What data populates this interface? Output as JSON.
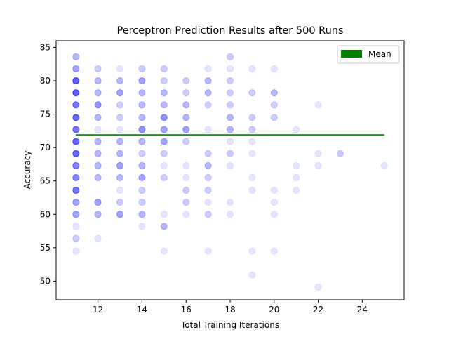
{
  "chart_data": {
    "type": "scatter",
    "title": "Perceptron Prediction Results after 500 Runs",
    "xlabel": "Total Training Iterations",
    "ylabel": "Accuracy",
    "xlim": [
      10.1,
      25.9
    ],
    "ylim": [
      47.2,
      86.0
    ],
    "xticks": [
      12,
      14,
      16,
      18,
      20,
      22,
      24
    ],
    "yticks": [
      50,
      55,
      60,
      65,
      70,
      75,
      80,
      85
    ],
    "grid": false,
    "legend_position": "top-right",
    "series": [
      {
        "type": "scatter",
        "color": "#0000ff",
        "points": [
          {
            "x": 11,
            "y": 83.6,
            "n": 3
          },
          {
            "x": 11,
            "y": 81.8,
            "n": 4
          },
          {
            "x": 11,
            "y": 80.0,
            "n": 9
          },
          {
            "x": 11,
            "y": 78.2,
            "n": 9
          },
          {
            "x": 11,
            "y": 76.4,
            "n": 7
          },
          {
            "x": 11,
            "y": 74.5,
            "n": 8
          },
          {
            "x": 11,
            "y": 72.7,
            "n": 7
          },
          {
            "x": 11,
            "y": 70.9,
            "n": 8
          },
          {
            "x": 11,
            "y": 69.1,
            "n": 8
          },
          {
            "x": 11,
            "y": 67.3,
            "n": 6
          },
          {
            "x": 11,
            "y": 65.5,
            "n": 6
          },
          {
            "x": 11,
            "y": 63.6,
            "n": 7
          },
          {
            "x": 11,
            "y": 61.8,
            "n": 4
          },
          {
            "x": 11,
            "y": 60.0,
            "n": 4
          },
          {
            "x": 11,
            "y": 58.2,
            "n": 1
          },
          {
            "x": 11,
            "y": 56.4,
            "n": 2
          },
          {
            "x": 11,
            "y": 54.5,
            "n": 1
          },
          {
            "x": 12,
            "y": 81.8,
            "n": 2
          },
          {
            "x": 12,
            "y": 80.0,
            "n": 3
          },
          {
            "x": 12,
            "y": 78.2,
            "n": 3
          },
          {
            "x": 12,
            "y": 76.4,
            "n": 5
          },
          {
            "x": 12,
            "y": 74.5,
            "n": 3
          },
          {
            "x": 12,
            "y": 72.7,
            "n": 1
          },
          {
            "x": 12,
            "y": 70.9,
            "n": 3
          },
          {
            "x": 12,
            "y": 69.1,
            "n": 3
          },
          {
            "x": 12,
            "y": 67.3,
            "n": 3
          },
          {
            "x": 12,
            "y": 65.5,
            "n": 3
          },
          {
            "x": 12,
            "y": 61.8,
            "n": 4
          },
          {
            "x": 12,
            "y": 60.0,
            "n": 3
          },
          {
            "x": 12,
            "y": 56.4,
            "n": 1
          },
          {
            "x": 13,
            "y": 81.8,
            "n": 1
          },
          {
            "x": 13,
            "y": 80.0,
            "n": 3
          },
          {
            "x": 13,
            "y": 78.2,
            "n": 4
          },
          {
            "x": 13,
            "y": 76.4,
            "n": 2
          },
          {
            "x": 13,
            "y": 74.5,
            "n": 2
          },
          {
            "x": 13,
            "y": 72.7,
            "n": 1
          },
          {
            "x": 13,
            "y": 70.9,
            "n": 3
          },
          {
            "x": 13,
            "y": 69.1,
            "n": 3
          },
          {
            "x": 13,
            "y": 67.3,
            "n": 4
          },
          {
            "x": 13,
            "y": 65.5,
            "n": 3
          },
          {
            "x": 13,
            "y": 63.6,
            "n": 1
          },
          {
            "x": 13,
            "y": 61.8,
            "n": 2
          },
          {
            "x": 13,
            "y": 60.0,
            "n": 4
          },
          {
            "x": 14,
            "y": 81.8,
            "n": 2
          },
          {
            "x": 14,
            "y": 80.0,
            "n": 4
          },
          {
            "x": 14,
            "y": 78.2,
            "n": 3
          },
          {
            "x": 14,
            "y": 76.4,
            "n": 3
          },
          {
            "x": 14,
            "y": 74.5,
            "n": 3
          },
          {
            "x": 14,
            "y": 72.7,
            "n": 5
          },
          {
            "x": 14,
            "y": 70.9,
            "n": 3
          },
          {
            "x": 14,
            "y": 69.1,
            "n": 2
          },
          {
            "x": 14,
            "y": 67.3,
            "n": 3
          },
          {
            "x": 14,
            "y": 65.5,
            "n": 4
          },
          {
            "x": 14,
            "y": 63.6,
            "n": 2
          },
          {
            "x": 14,
            "y": 61.8,
            "n": 2
          },
          {
            "x": 14,
            "y": 60.0,
            "n": 3
          },
          {
            "x": 14,
            "y": 58.2,
            "n": 1
          },
          {
            "x": 15,
            "y": 81.8,
            "n": 2
          },
          {
            "x": 15,
            "y": 80.0,
            "n": 2
          },
          {
            "x": 15,
            "y": 78.2,
            "n": 3
          },
          {
            "x": 15,
            "y": 76.4,
            "n": 3
          },
          {
            "x": 15,
            "y": 74.5,
            "n": 5
          },
          {
            "x": 15,
            "y": 72.7,
            "n": 4
          },
          {
            "x": 15,
            "y": 70.9,
            "n": 4
          },
          {
            "x": 15,
            "y": 69.1,
            "n": 2
          },
          {
            "x": 15,
            "y": 67.3,
            "n": 1
          },
          {
            "x": 15,
            "y": 65.5,
            "n": 2
          },
          {
            "x": 15,
            "y": 60.0,
            "n": 1
          },
          {
            "x": 15,
            "y": 58.2,
            "n": 3
          },
          {
            "x": 15,
            "y": 54.5,
            "n": 1
          },
          {
            "x": 16,
            "y": 80.0,
            "n": 2
          },
          {
            "x": 16,
            "y": 78.2,
            "n": 2
          },
          {
            "x": 16,
            "y": 76.4,
            "n": 3
          },
          {
            "x": 16,
            "y": 74.5,
            "n": 3
          },
          {
            "x": 16,
            "y": 72.7,
            "n": 4
          },
          {
            "x": 16,
            "y": 70.9,
            "n": 2
          },
          {
            "x": 16,
            "y": 67.3,
            "n": 1
          },
          {
            "x": 16,
            "y": 65.5,
            "n": 1
          },
          {
            "x": 16,
            "y": 63.6,
            "n": 2
          },
          {
            "x": 16,
            "y": 61.8,
            "n": 2
          },
          {
            "x": 16,
            "y": 60.0,
            "n": 1
          },
          {
            "x": 17,
            "y": 81.8,
            "n": 1
          },
          {
            "x": 17,
            "y": 80.0,
            "n": 3
          },
          {
            "x": 17,
            "y": 78.2,
            "n": 3
          },
          {
            "x": 17,
            "y": 76.4,
            "n": 2
          },
          {
            "x": 17,
            "y": 72.7,
            "n": 1
          },
          {
            "x": 17,
            "y": 69.1,
            "n": 2
          },
          {
            "x": 17,
            "y": 67.3,
            "n": 3
          },
          {
            "x": 17,
            "y": 65.5,
            "n": 2
          },
          {
            "x": 17,
            "y": 63.6,
            "n": 2
          },
          {
            "x": 17,
            "y": 61.8,
            "n": 1
          },
          {
            "x": 17,
            "y": 60.0,
            "n": 2
          },
          {
            "x": 17,
            "y": 54.5,
            "n": 1
          },
          {
            "x": 18,
            "y": 83.6,
            "n": 2
          },
          {
            "x": 18,
            "y": 81.8,
            "n": 1
          },
          {
            "x": 18,
            "y": 80.0,
            "n": 2
          },
          {
            "x": 18,
            "y": 78.2,
            "n": 2
          },
          {
            "x": 18,
            "y": 76.4,
            "n": 2
          },
          {
            "x": 18,
            "y": 74.5,
            "n": 3
          },
          {
            "x": 18,
            "y": 72.7,
            "n": 3
          },
          {
            "x": 18,
            "y": 70.9,
            "n": 1
          },
          {
            "x": 18,
            "y": 69.1,
            "n": 2
          },
          {
            "x": 18,
            "y": 67.3,
            "n": 1
          },
          {
            "x": 18,
            "y": 61.8,
            "n": 1
          },
          {
            "x": 18,
            "y": 60.0,
            "n": 1
          },
          {
            "x": 19,
            "y": 81.8,
            "n": 1
          },
          {
            "x": 19,
            "y": 78.2,
            "n": 2
          },
          {
            "x": 19,
            "y": 74.5,
            "n": 2
          },
          {
            "x": 19,
            "y": 72.7,
            "n": 2
          },
          {
            "x": 19,
            "y": 70.9,
            "n": 1
          },
          {
            "x": 19,
            "y": 69.1,
            "n": 1
          },
          {
            "x": 19,
            "y": 65.5,
            "n": 1
          },
          {
            "x": 19,
            "y": 63.6,
            "n": 1
          },
          {
            "x": 19,
            "y": 54.5,
            "n": 1
          },
          {
            "x": 19,
            "y": 50.9,
            "n": 1
          },
          {
            "x": 20,
            "y": 81.8,
            "n": 1
          },
          {
            "x": 20,
            "y": 78.2,
            "n": 3
          },
          {
            "x": 20,
            "y": 76.4,
            "n": 2
          },
          {
            "x": 20,
            "y": 74.5,
            "n": 2
          },
          {
            "x": 20,
            "y": 63.6,
            "n": 1
          },
          {
            "x": 20,
            "y": 61.8,
            "n": 1
          },
          {
            "x": 20,
            "y": 60.0,
            "n": 1
          },
          {
            "x": 20,
            "y": 54.5,
            "n": 1
          },
          {
            "x": 21,
            "y": 72.7,
            "n": 1
          },
          {
            "x": 21,
            "y": 67.3,
            "n": 1
          },
          {
            "x": 21,
            "y": 65.5,
            "n": 1
          },
          {
            "x": 21,
            "y": 63.6,
            "n": 1
          },
          {
            "x": 22,
            "y": 76.4,
            "n": 1
          },
          {
            "x": 22,
            "y": 69.1,
            "n": 1
          },
          {
            "x": 22,
            "y": 67.3,
            "n": 1
          },
          {
            "x": 22,
            "y": 49.1,
            "n": 1
          },
          {
            "x": 23,
            "y": 69.1,
            "n": 2
          },
          {
            "x": 25,
            "y": 67.3,
            "n": 1
          }
        ]
      },
      {
        "type": "line",
        "name": "Mean",
        "color": "#008000",
        "x": [
          11,
          25
        ],
        "y": [
          71.9,
          71.9
        ]
      }
    ]
  }
}
